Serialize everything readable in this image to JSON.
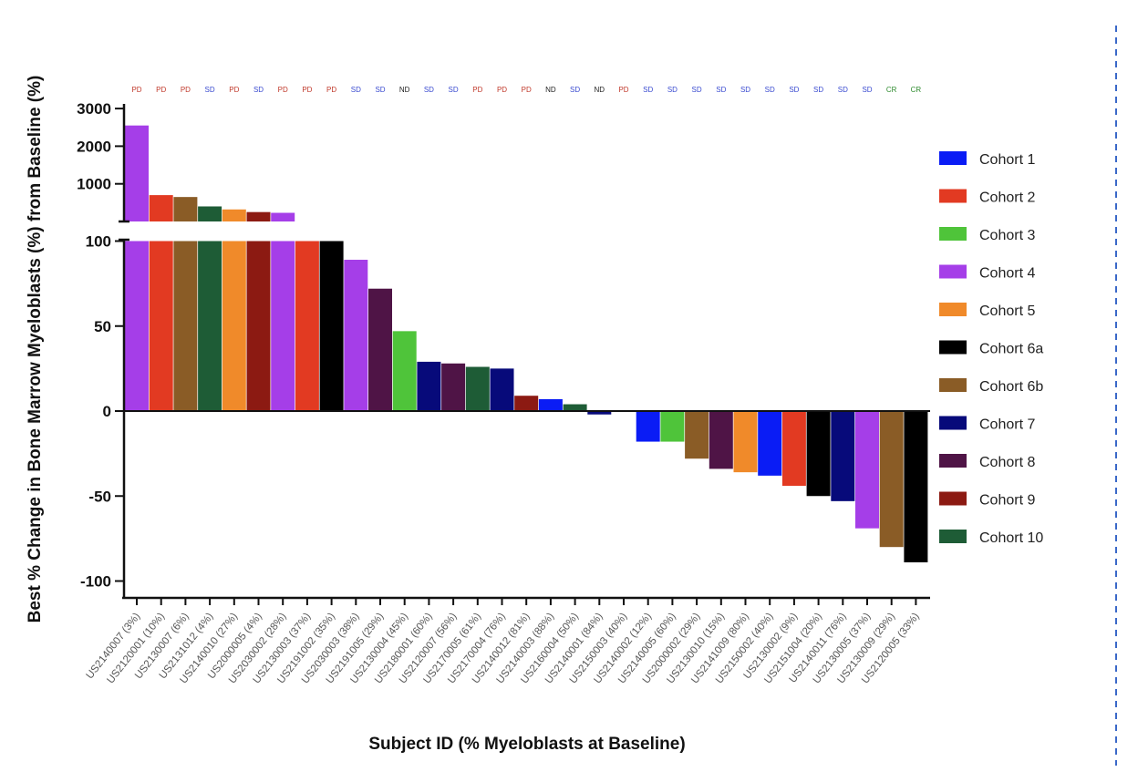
{
  "chart_data": {
    "type": "bar",
    "ylabel": "Best %  Change in Bone Marrow Myeloblasts (%) from  Baseline (%)",
    "xlabel": "Subject ID (% Myeloblasts at Baseline)",
    "y_axis_upper": {
      "ticks": [
        1000,
        2000,
        3000
      ],
      "tick_labels": [
        "1000",
        "2000",
        "3000"
      ]
    },
    "y_axis_lower": {
      "range": [
        -100,
        100
      ],
      "ticks": [
        -100,
        -50,
        0,
        50,
        100
      ],
      "tick_labels": [
        "-100",
        "-50",
        "0",
        "50",
        "100"
      ]
    },
    "legend_placement": "right",
    "cohorts": [
      {
        "name": "Cohort 1",
        "color": "#0a1cf5"
      },
      {
        "name": "Cohort 2",
        "color": "#e23a22"
      },
      {
        "name": "Cohort 3",
        "color": "#4fc43a"
      },
      {
        "name": "Cohort 4",
        "color": "#a53ee8"
      },
      {
        "name": "Cohort 5",
        "color": "#f08a2a"
      },
      {
        "name": "Cohort 6a",
        "color": "#000000"
      },
      {
        "name": "Cohort 6b",
        "color": "#8a5c26"
      },
      {
        "name": "Cohort 7",
        "color": "#070a7a"
      },
      {
        "name": "Cohort 8",
        "color": "#4f1446"
      },
      {
        "name": "Cohort 9",
        "color": "#8c1a12"
      },
      {
        "name": "Cohort 10",
        "color": "#1e5c36"
      }
    ],
    "response_colors": {
      "PD": "#c0392b",
      "SD": "#3a4bd0",
      "ND": "#222222",
      "CR": "#2e8b2e"
    },
    "bars": [
      {
        "category": "US2140007 (3%)",
        "value": 2550,
        "cohort": 3,
        "response": "PD"
      },
      {
        "category": "US2120001 (10%)",
        "value": 700,
        "cohort": 1,
        "response": "PD"
      },
      {
        "category": "US2130007 (6%)",
        "value": 650,
        "cohort": 6,
        "response": "PD"
      },
      {
        "category": "US2131012 (4%)",
        "value": 400,
        "cohort": 10,
        "response": "SD"
      },
      {
        "category": "US2140010 (27%)",
        "value": 320,
        "cohort": 4,
        "response": "PD"
      },
      {
        "category": "US2000005 (4%)",
        "value": 250,
        "cohort": 9,
        "response": "SD"
      },
      {
        "category": "US2030002 (28%)",
        "value": 230,
        "cohort": 3,
        "response": "PD"
      },
      {
        "category": "US2130003 (37%)",
        "value": 100,
        "cohort": 1,
        "response": "PD"
      },
      {
        "category": "US2191002 (35%)",
        "value": 100,
        "cohort": 5,
        "response": "PD"
      },
      {
        "category": "US2030003 (38%)",
        "value": 89,
        "cohort": 3,
        "response": "SD"
      },
      {
        "category": "US2191005 (29%)",
        "value": 72,
        "cohort": 8,
        "response": "SD"
      },
      {
        "category": "US2130004 (45%)",
        "value": 47,
        "cohort": 2,
        "response": "ND"
      },
      {
        "category": "US2180001 (60%)",
        "value": 29,
        "cohort": 7,
        "response": "SD"
      },
      {
        "category": "US2120007 (56%)",
        "value": 28,
        "cohort": 8,
        "response": "SD"
      },
      {
        "category": "US2170005 (61%)",
        "value": 26,
        "cohort": 10,
        "response": "PD"
      },
      {
        "category": "US2170004 (76%)",
        "value": 25,
        "cohort": 7,
        "response": "PD"
      },
      {
        "category": "US2140012 (81%)",
        "value": 9,
        "cohort": 9,
        "response": "PD"
      },
      {
        "category": "US2140003 (88%)",
        "value": 7,
        "cohort": 0,
        "response": "ND"
      },
      {
        "category": "US2160004 (50%)",
        "value": 4,
        "cohort": 10,
        "response": "SD"
      },
      {
        "category": "US2140001 (84%)",
        "value": -2,
        "cohort": 7,
        "response": "ND"
      },
      {
        "category": "US2150003 (40%)",
        "value": 0,
        "cohort": 5,
        "response": "PD"
      },
      {
        "category": "US2140002 (12%)",
        "value": -18,
        "cohort": 0,
        "response": "SD"
      },
      {
        "category": "US2140005 (60%)",
        "value": -18,
        "cohort": 2,
        "response": "SD"
      },
      {
        "category": "US2000002 (29%)",
        "value": -28,
        "cohort": 6,
        "response": "SD"
      },
      {
        "category": "US2130010 (15%)",
        "value": -34,
        "cohort": 8,
        "response": "SD"
      },
      {
        "category": "US2141009 (80%)",
        "value": -36,
        "cohort": 4,
        "response": "SD"
      },
      {
        "category": "US2150002 (40%)",
        "value": -38,
        "cohort": 0,
        "response": "SD"
      },
      {
        "category": "US2130002 (9%)",
        "value": -44,
        "cohort": 1,
        "response": "SD"
      },
      {
        "category": "US2151004 (20%)",
        "value": -50,
        "cohort": 5,
        "response": "SD"
      },
      {
        "category": "US2140011 (76%)",
        "value": -53,
        "cohort": 7,
        "response": "SD"
      },
      {
        "category": "US2130005 (37%)",
        "value": -69,
        "cohort": 3,
        "response": "SD"
      },
      {
        "category": "US2130009 (29%)",
        "value": -80,
        "cohort": 6,
        "response": "CR"
      },
      {
        "category": "US2120005 (33%)",
        "value": -89,
        "cohort": 5,
        "response": "CR"
      }
    ]
  }
}
